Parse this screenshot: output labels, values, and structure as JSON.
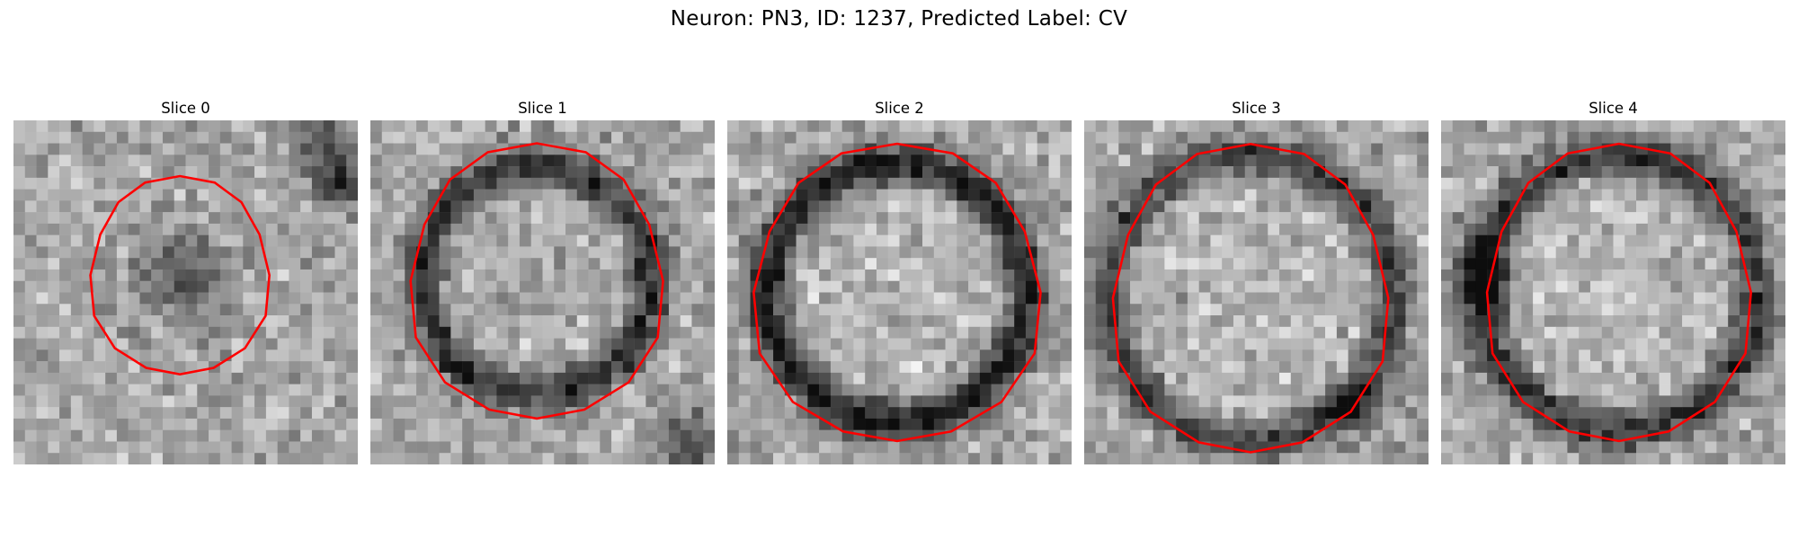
{
  "figure": {
    "title": "Neuron: PN3, ID: 1237, Predicted Label: CV"
  },
  "colors": {
    "contour": "#ff0000",
    "background": "#ffffff"
  },
  "panels": [
    {
      "title": "Slice 0"
    },
    {
      "title": "Slice 1"
    },
    {
      "title": "Slice 2"
    },
    {
      "title": "Slice 3"
    },
    {
      "title": "Slice 4"
    }
  ]
}
